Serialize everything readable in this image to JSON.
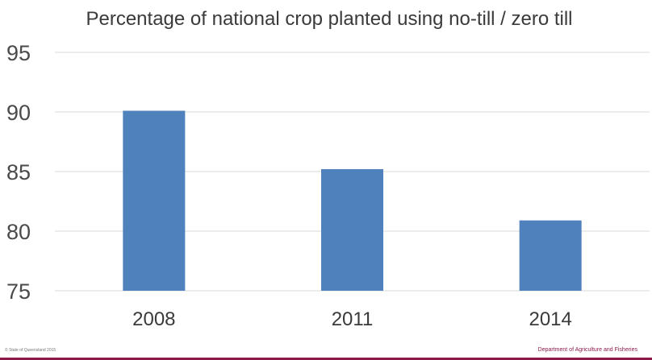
{
  "chart_data": {
    "type": "bar",
    "title": "Percentage of national crop planted using no-till / zero till",
    "categories": [
      "2008",
      "2011",
      "2014"
    ],
    "values": [
      90.1,
      85.2,
      80.9
    ],
    "ylim": [
      75,
      95
    ],
    "yticks": [
      "75",
      "80",
      "85",
      "90",
      "95"
    ],
    "xlabel": "",
    "ylabel": "",
    "grid": true,
    "legend": "none"
  },
  "footer": {
    "left": "© State of Queensland 2015",
    "right": "Department of Agriculture and Fisheries"
  },
  "colors": {
    "bar": "#4f81bd",
    "grid": "#d9d9d9",
    "accent": "#8b1a4a"
  }
}
